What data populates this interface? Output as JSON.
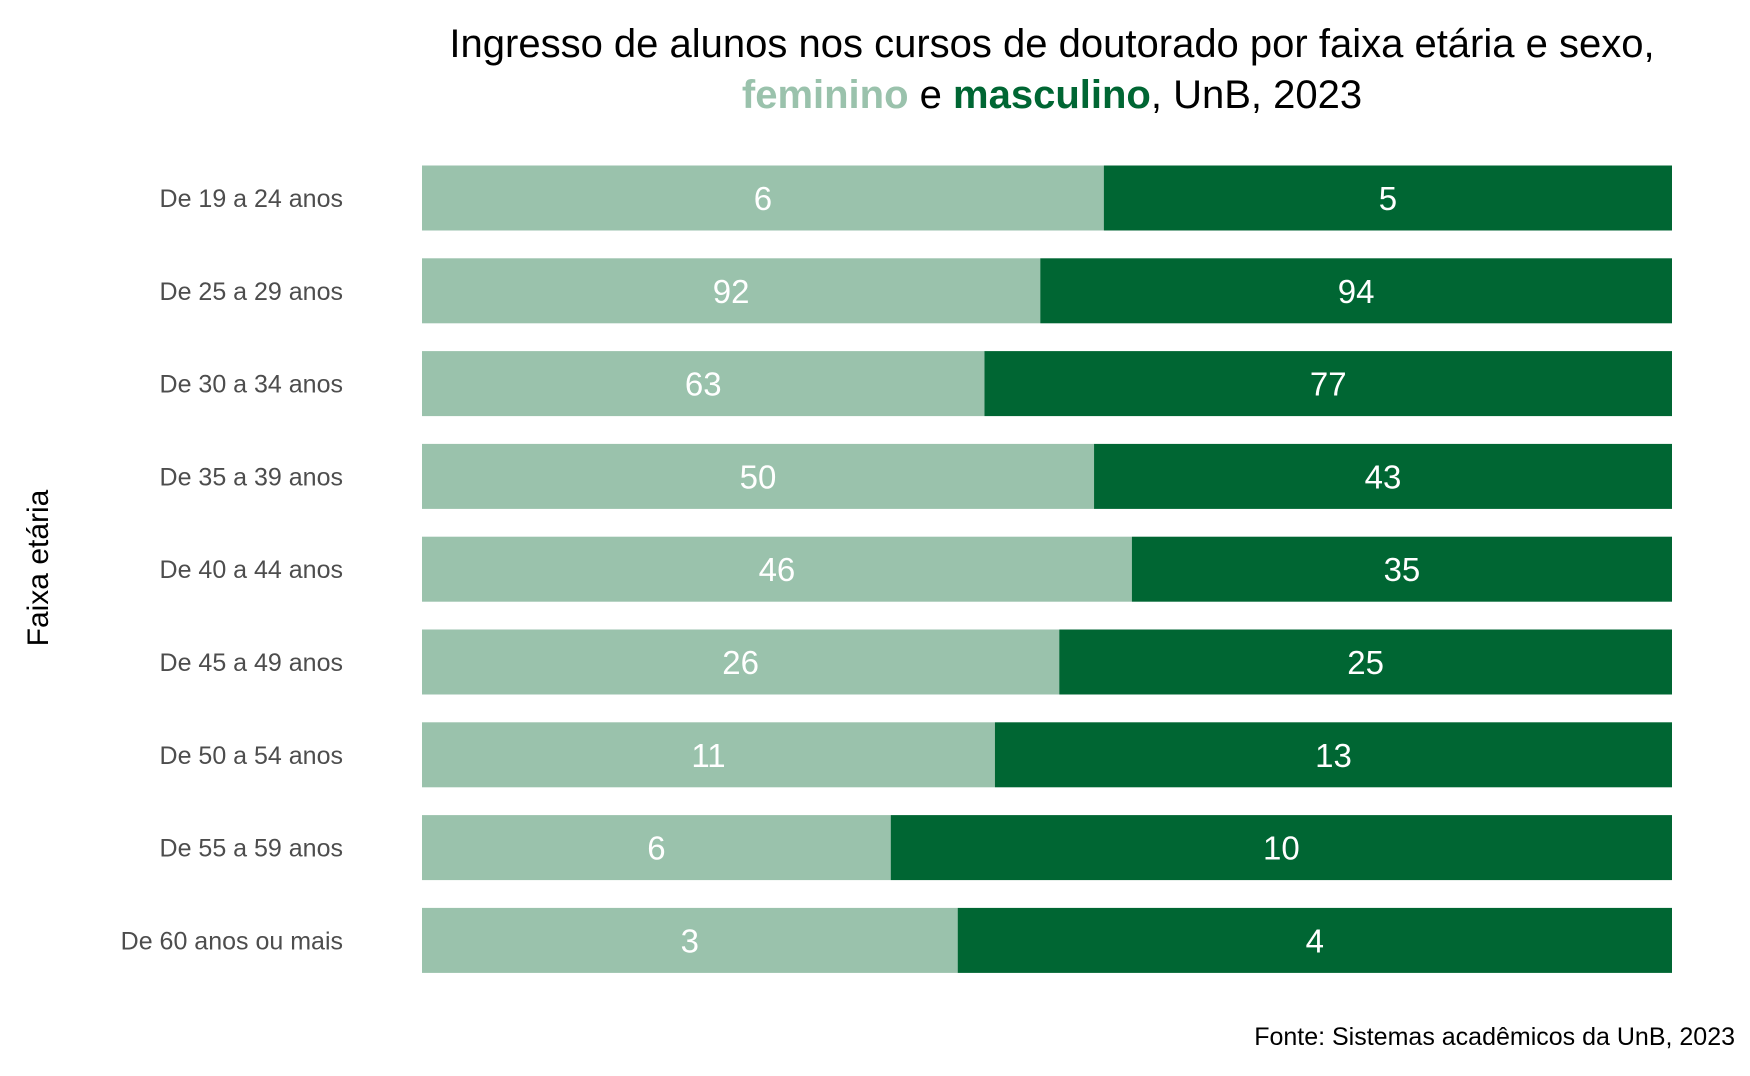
{
  "chart_data": {
    "type": "bar",
    "orientation": "horizontal",
    "stacking": "percent",
    "title": {
      "line1": "Ingresso de alunos nos cursos de doutorado por faixa etária e sexo,",
      "line2_part1": "feminino",
      "line2_part2": " e ",
      "line2_part3": "masculino",
      "line2_part4": ", UnB, 2023"
    },
    "ylabel": "Faixa etária",
    "xlabel": "",
    "caption": "Fonte: Sistemas acadêmicos da UnB, 2023",
    "categories": [
      "De 19 a 24 anos",
      "De 25 a 29 anos",
      "De 30 a 34 anos",
      "De 35 a 39 anos",
      "De 40 a 44 anos",
      "De 45 a 49 anos",
      "De 50 a 54 anos",
      "De 55 a 59 anos",
      "De 60 anos ou mais"
    ],
    "series": [
      {
        "name": "feminino",
        "color": "#9ac2ac",
        "values": [
          6,
          92,
          63,
          50,
          46,
          26,
          11,
          6,
          3
        ]
      },
      {
        "name": "masculino",
        "color": "#006633",
        "values": [
          5,
          94,
          77,
          43,
          35,
          25,
          13,
          10,
          4
        ]
      }
    ],
    "grid": false,
    "legend": "none"
  }
}
